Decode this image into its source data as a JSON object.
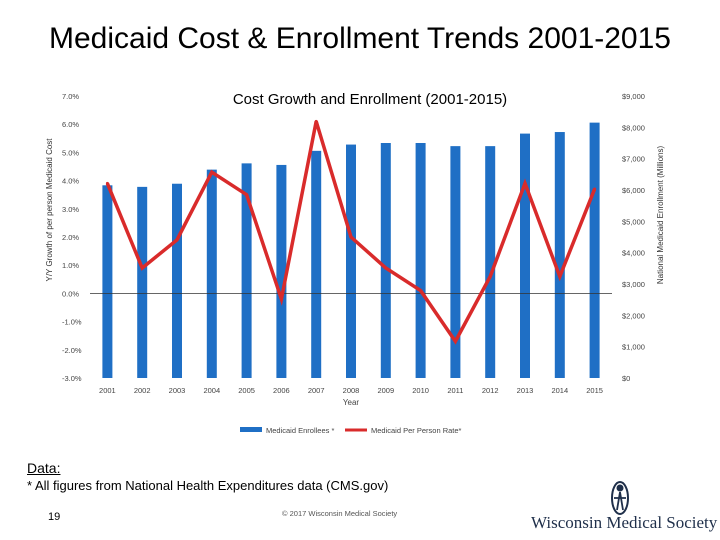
{
  "slide": {
    "title": "Medicaid Cost & Enrollment Trends 2001-2015",
    "page_number": "19",
    "copyright": "© 2017 Wisconsin Medical Society",
    "note_heading": "Data:",
    "note_text": "* All figures from National Health Expenditures data (CMS.gov)",
    "logo_text": "Wisconsin Medical Society",
    "logo_icon": "figure-emblem-icon"
  },
  "chart_data": {
    "type": "bar+line",
    "title": "Cost Growth and Enrollment (2001-2015)",
    "xlabel": "Year",
    "ylabel_left": "Y/Y Growth of per person Medicaid Cost",
    "ylabel_right": "National Medicaid Enrollment (Millions)",
    "categories": [
      "2001",
      "2002",
      "2003",
      "2004",
      "2005",
      "2006",
      "2007",
      "2008",
      "2009",
      "2010",
      "2011",
      "2012",
      "2013",
      "2014",
      "2015"
    ],
    "left_axis": {
      "min": -3.0,
      "max": 7.0,
      "ticks": [
        7,
        6,
        5,
        4,
        3,
        2,
        1,
        0,
        -1,
        -2,
        -3
      ],
      "tick_labels": [
        "7.0%",
        "6.0%",
        "5.0%",
        "4.0%",
        "3.0%",
        "2.0%",
        "1.0%",
        "0.0%",
        "-1.0%",
        "-2.0%",
        "-3.0%"
      ]
    },
    "right_axis": {
      "min": 0,
      "max": 9000,
      "ticks": [
        9000,
        8000,
        7000,
        6000,
        5000,
        4000,
        3000,
        2000,
        1000,
        0
      ],
      "tick_labels": [
        "$9,000",
        "$8,000",
        "$7,000",
        "$6,000",
        "$5,000",
        "$4,000",
        "$3,000",
        "$2,000",
        "$1,000",
        "$0"
      ]
    },
    "series": [
      {
        "name": "Medicaid Enrollees *",
        "kind": "bar",
        "axis": "right",
        "color": "#1f6fc5",
        "values": [
          6150,
          6100,
          6200,
          6650,
          6850,
          6800,
          7250,
          7450,
          7500,
          7500,
          7400,
          7400,
          7800,
          7850,
          8150
        ]
      },
      {
        "name": "Medicaid Per Person Rate*",
        "kind": "line",
        "axis": "left",
        "color": "#d92b2b",
        "values": [
          3.9,
          0.9,
          1.9,
          4.3,
          3.5,
          -0.2,
          6.1,
          2.0,
          0.9,
          0.1,
          -1.7,
          0.6,
          3.9,
          0.6,
          3.7
        ]
      }
    ],
    "legend_position": "bottom",
    "grid": false
  }
}
